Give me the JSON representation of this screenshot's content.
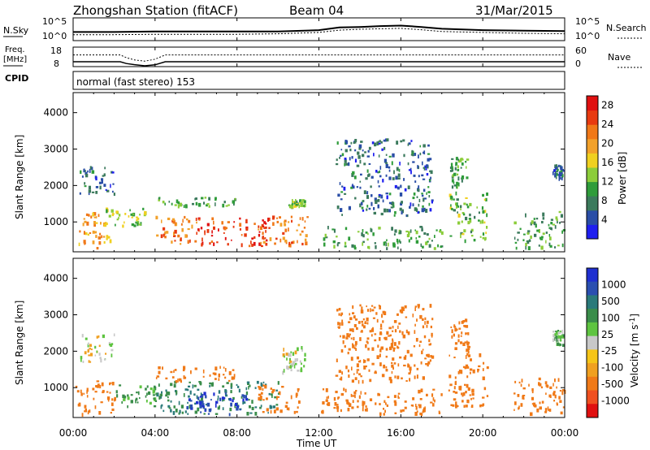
{
  "header": {
    "station": "Zhongshan Station (fitACF)",
    "beam": "Beam 04",
    "date": "31/Mar/2015"
  },
  "noise_panel": {
    "left_label": "N.Sky",
    "right_label": "N.Search",
    "left_ticks": [
      "10^5",
      "10^0"
    ],
    "right_ticks": [
      "10^5",
      "10^0"
    ]
  },
  "freq_panel": {
    "left_label_top": "Freq.",
    "left_label_bottom": "[MHz]",
    "right_label": "Nave",
    "left_ticks": [
      "18",
      "8"
    ],
    "right_ticks": [
      "60",
      "0"
    ]
  },
  "cpid": {
    "label": "CPID",
    "mode": "normal (fast stereo) 153"
  },
  "time_axis": {
    "label": "Time UT",
    "ticks": [
      "00:00",
      "04:00",
      "08:00",
      "12:00",
      "16:00",
      "20:00",
      "00:00"
    ]
  },
  "colors": {
    "power": [
      "#1f1ff0",
      "#2a4ea6",
      "#3b7a5c",
      "#2f9c3a",
      "#8ccd3a",
      "#f0d020",
      "#f2a12a",
      "#f07818",
      "#e83a10",
      "#e01010"
    ],
    "velocity": [
      "#e01010",
      "#f05020",
      "#f07a18",
      "#f0a020",
      "#f5c518",
      "#c8c8c8",
      "#5ec440",
      "#3a8d4a",
      "#2a7a7a",
      "#2a4fb0",
      "#1f2fd0"
    ]
  },
  "chart_data": [
    {
      "type": "line",
      "title": "",
      "xlabel": "",
      "ylabel": "N.Sky",
      "ylim_log10": [
        0,
        5
      ],
      "log_scale": true,
      "x": [
        0,
        2,
        4,
        6,
        8,
        10,
        12,
        13,
        14,
        15,
        16,
        17,
        18,
        20,
        22,
        24
      ],
      "series": [
        {
          "values_log10": [
            1.9,
            1.9,
            2.0,
            2.0,
            2.0,
            2.0,
            2.3,
            2.9,
            3.0,
            3.2,
            3.3,
            3.0,
            2.6,
            2.3,
            2.2,
            2.1
          ]
        },
        {
          "values_log10": [
            1.3,
            1.3,
            1.4,
            1.4,
            1.4,
            1.5,
            1.8,
            2.3,
            2.5,
            2.6,
            2.7,
            2.4,
            2.0,
            1.8,
            1.6,
            1.5
          ]
        }
      ]
    },
    {
      "type": "line",
      "title": "",
      "xlabel": "",
      "ylabel": "Freq. [MHz]",
      "ylim": [
        8,
        18
      ],
      "x": [
        0,
        2.3,
        2.6,
        3.0,
        3.5,
        4.0,
        4.5,
        12,
        24
      ],
      "series": [
        {
          "values": [
            10.5,
            10.5,
            9.6,
            9.0,
            8.4,
            8.9,
            10.5,
            10.5,
            10.5
          ]
        },
        {
          "values": [
            14.0,
            14.0,
            12.6,
            11.4,
            10.8,
            11.8,
            14.0,
            14.0,
            14.0
          ]
        }
      ]
    },
    {
      "type": "heatmap",
      "title": "",
      "xlabel": "",
      "ylabel": "Slant Range [km]",
      "xlim": [
        0,
        24
      ],
      "ylim": [
        180,
        4550
      ],
      "y_ticks": [
        1000,
        2000,
        3000,
        4000
      ],
      "colorbar": {
        "label": "Power [dB]",
        "ticks": [
          4,
          8,
          12,
          16,
          20,
          24,
          28
        ],
        "range": [
          0,
          30
        ]
      },
      "blobs": [
        {
          "t": [
            0.1,
            1.8
          ],
          "r": [
            300,
            1300
          ],
          "v": 20
        },
        {
          "t": [
            1.5,
            3.5
          ],
          "r": [
            900,
            1400
          ],
          "v": 14
        },
        {
          "t": [
            4.0,
            6.0
          ],
          "r": [
            400,
            1200
          ],
          "v": 22
        },
        {
          "t": [
            6.0,
            9.6
          ],
          "r": [
            350,
            1150
          ],
          "v": 26
        },
        {
          "t": [
            9.0,
            11.5
          ],
          "r": [
            400,
            1200
          ],
          "v": 22
        },
        {
          "t": [
            10.5,
            11.3
          ],
          "r": [
            1450,
            1650
          ],
          "v": 12
        },
        {
          "t": [
            0.3,
            2.0
          ],
          "r": [
            1800,
            2550
          ],
          "v": 6
        },
        {
          "t": [
            4.0,
            8.0
          ],
          "r": [
            1450,
            1700
          ],
          "v": 10
        },
        {
          "t": [
            12.2,
            18.0
          ],
          "r": [
            300,
            900
          ],
          "v": 10
        },
        {
          "t": [
            12.8,
            17.5
          ],
          "r": [
            1200,
            3300
          ],
          "v": 6
        },
        {
          "t": [
            18.3,
            20.2
          ],
          "r": [
            500,
            1900
          ],
          "v": 12
        },
        {
          "t": [
            18.4,
            19.2
          ],
          "r": [
            2000,
            2800
          ],
          "v": 10
        },
        {
          "t": [
            21.5,
            24.0
          ],
          "r": [
            300,
            1300
          ],
          "v": 10
        },
        {
          "t": [
            23.4,
            23.9
          ],
          "r": [
            2200,
            2600
          ],
          "v": 6
        }
      ]
    },
    {
      "type": "heatmap",
      "title": "",
      "xlabel": "Time UT",
      "ylabel": "Slant Range [km]",
      "xlim": [
        0,
        24
      ],
      "ylim": [
        180,
        4550
      ],
      "y_ticks": [
        1000,
        2000,
        3000,
        4000
      ],
      "colorbar": {
        "label": "Velocity [m s-1]",
        "ticks": [
          1000,
          500,
          100,
          25,
          -25,
          -100,
          -500,
          -1000
        ]
      },
      "blobs": [
        {
          "t": [
            0.1,
            2.0
          ],
          "r": [
            300,
            1200
          ],
          "v": -200
        },
        {
          "t": [
            2.0,
            4.0
          ],
          "r": [
            500,
            1100
          ],
          "v": 150
        },
        {
          "t": [
            4.0,
            10.0
          ],
          "r": [
            300,
            1200
          ],
          "v": 500
        },
        {
          "t": [
            5.5,
            8.5
          ],
          "r": [
            300,
            900
          ],
          "v": 1000
        },
        {
          "t": [
            4.0,
            8.0
          ],
          "r": [
            1200,
            1600
          ],
          "v": -300
        },
        {
          "t": [
            9.0,
            11.0
          ],
          "r": [
            350,
            1100
          ],
          "v": -300
        },
        {
          "t": [
            10.2,
            11.3
          ],
          "r": [
            1450,
            2150
          ],
          "v": 0
        },
        {
          "t": [
            0.3,
            2.0
          ],
          "r": [
            1700,
            2500
          ],
          "v": 0
        },
        {
          "t": [
            12.0,
            18.0
          ],
          "r": [
            300,
            1000
          ],
          "v": -400
        },
        {
          "t": [
            12.8,
            17.5
          ],
          "r": [
            1200,
            3300
          ],
          "v": -300
        },
        {
          "t": [
            18.3,
            20.2
          ],
          "r": [
            500,
            2000
          ],
          "v": -200
        },
        {
          "t": [
            18.4,
            19.3
          ],
          "r": [
            2000,
            2900
          ],
          "v": -300
        },
        {
          "t": [
            21.5,
            24.0
          ],
          "r": [
            300,
            1300
          ],
          "v": -400
        },
        {
          "t": [
            23.4,
            23.9
          ],
          "r": [
            2200,
            2600
          ],
          "v": 60
        }
      ]
    }
  ]
}
